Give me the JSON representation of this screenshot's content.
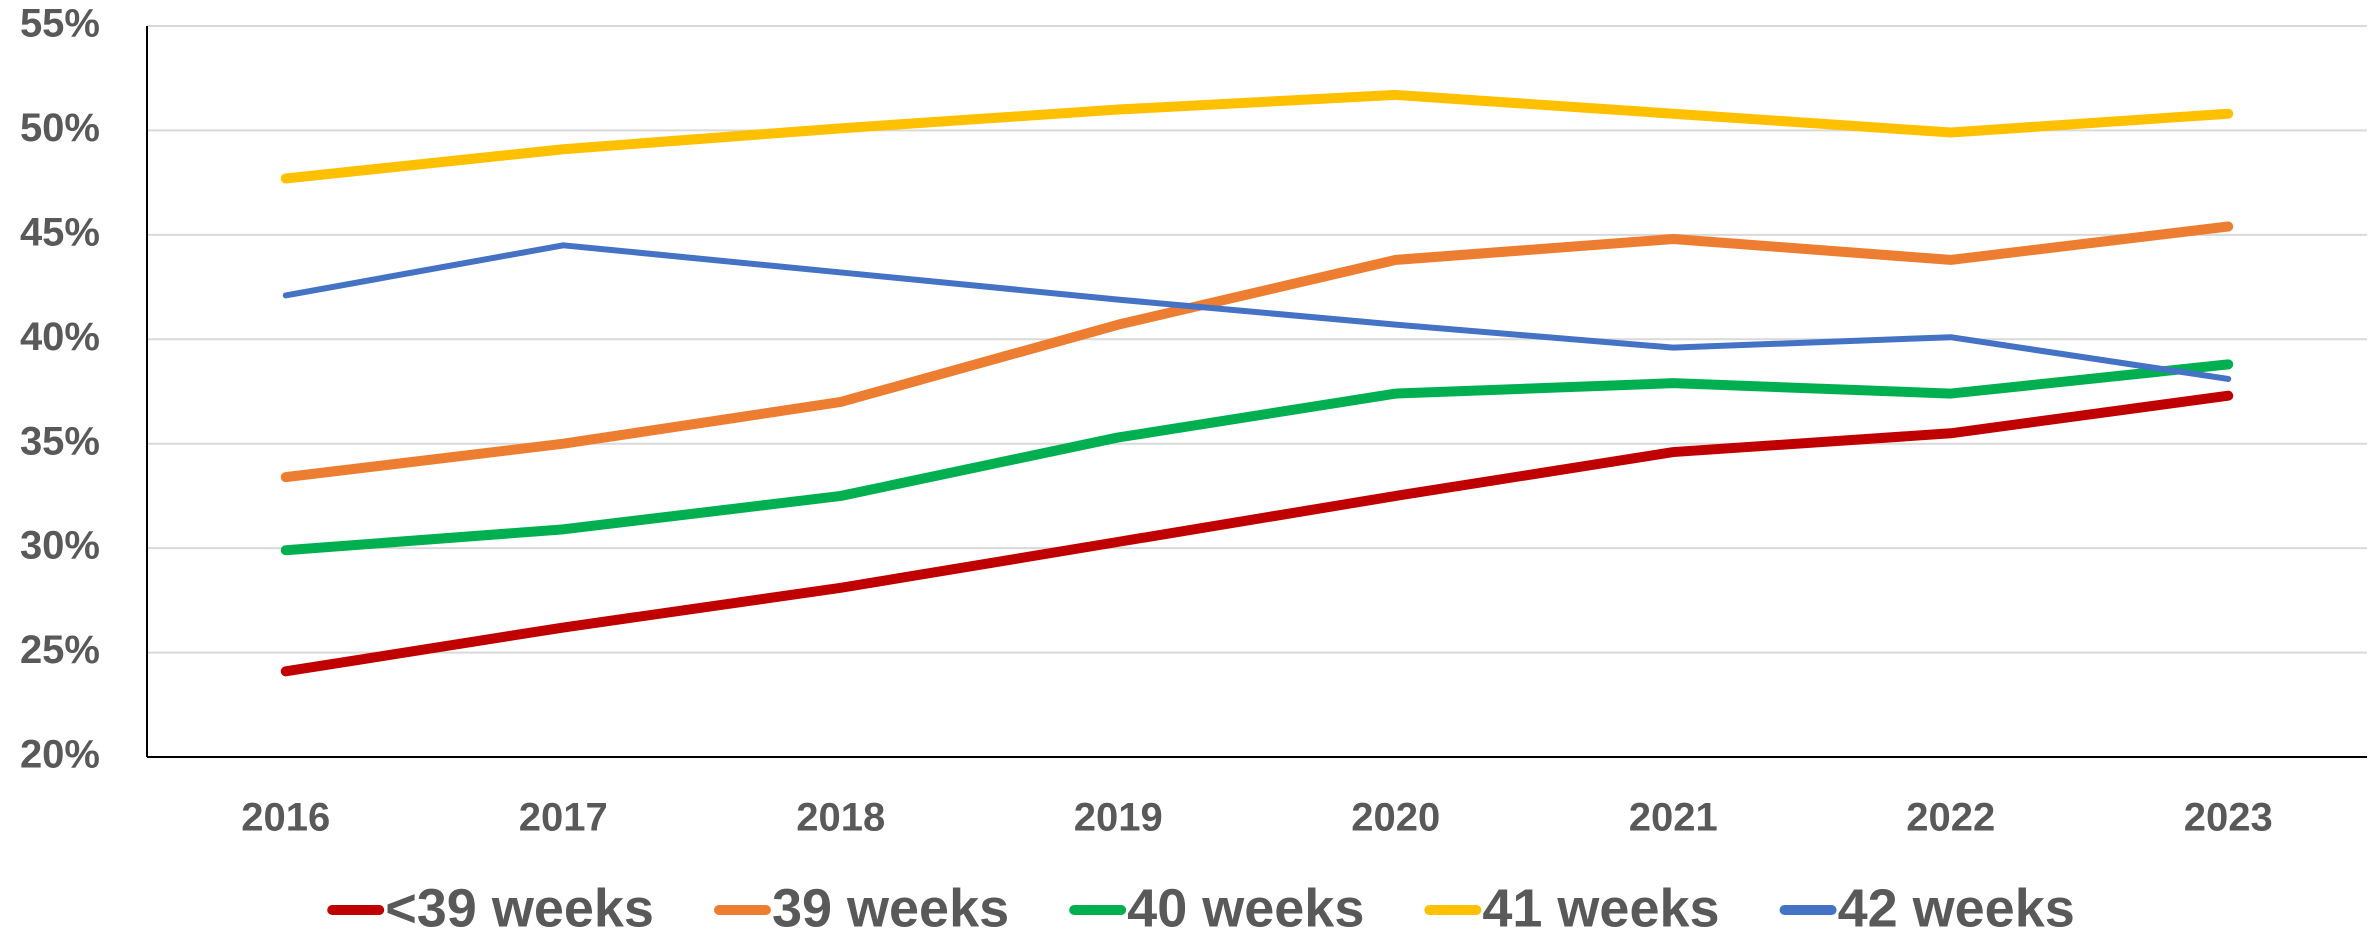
{
  "chart_data": {
    "type": "line",
    "categories": [
      "2016",
      "2017",
      "2018",
      "2019",
      "2020",
      "2021",
      "2022",
      "2023"
    ],
    "series": [
      {
        "name": "<39 weeks",
        "color": "#c00000",
        "values": [
          24.1,
          26.2,
          28.1,
          30.3,
          32.5,
          34.6,
          35.5,
          37.3
        ]
      },
      {
        "name": "39 weeks",
        "color": "#ed7d31",
        "values": [
          33.4,
          35.0,
          37.0,
          40.7,
          43.8,
          44.8,
          43.8,
          45.4
        ]
      },
      {
        "name": "40 weeks",
        "color": "#00b050",
        "values": [
          29.9,
          30.9,
          32.5,
          35.3,
          37.4,
          37.9,
          37.4,
          38.8
        ]
      },
      {
        "name": "41 weeks",
        "color": "#ffc000",
        "values": [
          47.7,
          49.1,
          50.1,
          51.0,
          51.7,
          50.8,
          49.9,
          50.8
        ]
      },
      {
        "name": "42 weeks",
        "color": "#4472c4",
        "values": [
          42.1,
          44.5,
          43.2,
          41.9,
          40.7,
          39.6,
          40.1,
          38.1
        ]
      }
    ],
    "ylim": [
      20,
      55
    ],
    "yticks": [
      {
        "value": 20,
        "label": "20%"
      },
      {
        "value": 25,
        "label": "25%"
      },
      {
        "value": 30,
        "label": "30%"
      },
      {
        "value": 35,
        "label": "35%"
      },
      {
        "value": 40,
        "label": "40%"
      },
      {
        "value": 45,
        "label": "45%"
      },
      {
        "value": 50,
        "label": "50%"
      },
      {
        "value": 55,
        "label": "55%"
      }
    ],
    "grid": true,
    "legend": "bottom"
  }
}
